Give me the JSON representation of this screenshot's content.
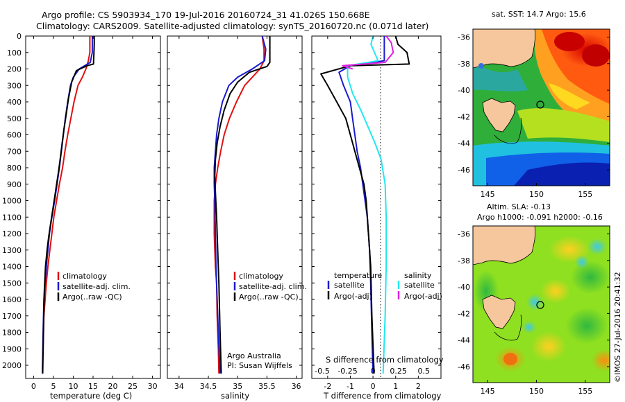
{
  "title": {
    "line1": "Argo profile: CS 5903934_170 19-Jul-2016 20160724_31 41.026S 150.668E",
    "line2": "Climatology: CARS2009. Satellite-adjusted climatology: synTS_20160720.nc (0.071d later)"
  },
  "colors": {
    "climatology": "#e01010",
    "satellite": "#1a1ad0",
    "argo": "#000000",
    "sat_salinity": "#20e8f0",
    "argo_adj_salinity": "#e020e0"
  },
  "depth_axis": {
    "ticks": [
      "0",
      "100",
      "200",
      "300",
      "400",
      "500",
      "600",
      "700",
      "800",
      "900",
      "1000",
      "1100",
      "1200",
      "1300",
      "1400",
      "1500",
      "1600",
      "1700",
      "1800",
      "1900",
      "2000"
    ]
  },
  "chart_data": [
    {
      "type": "line",
      "panel": "temperature",
      "xlabel": "temperature (deg C)",
      "xlim": [
        -2,
        32
      ],
      "xticks": [
        "0",
        "5",
        "10",
        "15",
        "20",
        "25",
        "30"
      ],
      "ylim": [
        2080,
        0
      ],
      "legend": {
        "position": "bottom-right",
        "entries": [
          "climatology",
          "satellite-adj. clim.",
          "Argo(..raw -QC)"
        ]
      },
      "series": [
        {
          "name": "climatology",
          "color": "#e01010",
          "x": [
            14.2,
            14.2,
            13.8,
            13.2,
            12.3,
            11.2,
            10.2,
            9.4,
            8.6,
            7.9,
            7.3,
            6.5,
            5.8,
            5.1,
            4.6,
            4.1,
            3.6,
            3.2,
            2.9,
            2.6,
            2.4,
            2.2
          ],
          "depth": [
            0,
            100,
            150,
            200,
            250,
            300,
            400,
            500,
            600,
            700,
            800,
            900,
            1000,
            1100,
            1200,
            1300,
            1400,
            1500,
            1600,
            1700,
            1900,
            2050
          ]
        },
        {
          "name": "satellite-adj. clim.",
          "color": "#1a1ad0",
          "x": [
            14.8,
            14.8,
            14.3,
            11.5,
            10.0,
            9.3,
            8.6,
            8.0,
            7.5,
            7.0,
            6.5,
            5.9,
            5.3,
            4.6,
            4.0,
            3.6,
            3.2,
            2.9,
            2.6,
            2.4,
            2.2
          ],
          "depth": [
            0,
            100,
            160,
            200,
            250,
            300,
            400,
            500,
            600,
            700,
            800,
            900,
            1000,
            1100,
            1200,
            1300,
            1400,
            1500,
            1600,
            1800,
            2050
          ]
        },
        {
          "name": "Argo(..raw -QC)",
          "color": "#000000",
          "x": [
            15.3,
            15.3,
            15.2,
            15.1,
            13.5,
            10.8,
            9.6,
            8.8,
            8.2,
            7.7,
            7.2,
            6.8,
            6.3,
            5.8,
            5.3,
            4.8,
            4.3,
            3.8,
            3.4,
            3.0,
            2.7,
            2.5,
            2.3
          ],
          "depth": [
            0,
            50,
            120,
            170,
            180,
            210,
            280,
            380,
            480,
            560,
            650,
            730,
            820,
            900,
            980,
            1060,
            1140,
            1220,
            1300,
            1400,
            1550,
            1750,
            2050
          ]
        }
      ]
    },
    {
      "type": "line",
      "panel": "salinity",
      "xlabel": "salinity",
      "xlim": [
        33.8,
        36.1
      ],
      "xticks": [
        "34",
        "34.5",
        "35",
        "35.5",
        "36"
      ],
      "ylim": [
        2080,
        0
      ],
      "legend": {
        "position": "bottom-right",
        "entries": [
          "climatology",
          "satellite-adj. clim.",
          "Argo(..raw -QC)"
        ]
      },
      "annotation": [
        "Argo Australia",
        "PI: Susan Wijffels"
      ],
      "series": [
        {
          "name": "climatology",
          "color": "#e01010",
          "x": [
            35.42,
            35.45,
            35.45,
            35.38,
            35.25,
            35.12,
            34.98,
            34.86,
            34.77,
            34.71,
            34.66,
            34.62,
            34.6,
            34.6,
            34.6,
            34.61,
            34.62,
            34.64,
            34.65,
            34.67,
            34.68
          ],
          "depth": [
            0,
            80,
            150,
            200,
            250,
            300,
            400,
            500,
            600,
            700,
            800,
            900,
            1000,
            1100,
            1200,
            1300,
            1400,
            1500,
            1700,
            1900,
            2050
          ]
        },
        {
          "name": "satellite-adj. clim.",
          "color": "#1a1ad0",
          "x": [
            35.42,
            35.48,
            35.46,
            35.25,
            35.0,
            34.85,
            34.74,
            34.68,
            34.64,
            34.62,
            34.6,
            34.6,
            34.61,
            34.62,
            34.63,
            34.65,
            34.67,
            34.7
          ],
          "depth": [
            0,
            80,
            150,
            200,
            250,
            300,
            400,
            500,
            600,
            700,
            800,
            900,
            1000,
            1200,
            1400,
            1600,
            1800,
            2050
          ]
        },
        {
          "name": "Argo(..raw -QC)",
          "color": "#000000",
          "x": [
            35.55,
            35.55,
            35.5,
            35.2,
            35.0,
            34.87,
            34.77,
            34.7,
            34.65,
            34.62,
            34.61,
            34.62,
            34.64,
            34.66,
            34.68,
            34.7,
            34.72
          ],
          "depth": [
            0,
            160,
            185,
            220,
            280,
            350,
            450,
            550,
            650,
            750,
            850,
            950,
            1100,
            1300,
            1500,
            1800,
            2050
          ]
        }
      ]
    },
    {
      "type": "line",
      "panel": "difference",
      "xlabel": "T difference from climatology",
      "xlim": [
        -2.7,
        3.0
      ],
      "xticks": [
        "-2",
        "-1",
        "0",
        "1",
        "2"
      ],
      "top_axis_label": "S difference from climatology",
      "s_ticks": [
        "-0.5",
        "-0.25",
        "0",
        "0.25",
        "0.5"
      ],
      "ylim": [
        2080,
        0
      ],
      "legend": {
        "position": "bottom",
        "entries": [
          "temperature",
          "satellite",
          "Argo(-adj)",
          "salinity",
          "satellite",
          "Argo(-adj)"
        ]
      },
      "series": [
        {
          "name": "temperature satellite",
          "color": "#1a1ad0",
          "x": [
            0.5,
            0.5,
            0.5,
            -1.0,
            -1.5,
            -1.3,
            -1.0,
            -0.9,
            -0.8,
            -0.7,
            -0.55,
            -0.45,
            -0.35,
            -0.25,
            -0.15,
            -0.1,
            -0.05,
            0.0
          ],
          "depth": [
            0,
            100,
            150,
            180,
            220,
            300,
            400,
            500,
            600,
            700,
            800,
            900,
            1000,
            1100,
            1300,
            1500,
            1800,
            2050
          ]
        },
        {
          "name": "temperature Argo(-adj)",
          "color": "#000000",
          "x": [
            1.0,
            1.1,
            1.5,
            1.6,
            -1.0,
            -2.3,
            -2.0,
            -1.6,
            -1.2,
            -1.0,
            -0.8,
            -0.6,
            -0.4,
            -0.3,
            -0.2,
            -0.1,
            -0.05,
            0.05
          ],
          "depth": [
            0,
            50,
            100,
            170,
            180,
            230,
            300,
            400,
            500,
            600,
            700,
            800,
            900,
            1000,
            1200,
            1400,
            1700,
            2050
          ]
        },
        {
          "name": "salinity satellite",
          "color": "#20e8f0",
          "x": [
            0.0,
            -0.02,
            0.05,
            -0.25,
            -0.25,
            -0.2,
            -0.12,
            -0.05,
            0.02,
            0.08,
            0.12,
            0.13,
            0.13,
            0.12,
            0.1
          ],
          "depth": [
            0,
            50,
            150,
            180,
            250,
            350,
            450,
            550,
            650,
            750,
            900,
            1100,
            1400,
            1700,
            2050
          ]
        },
        {
          "name": "salinity Argo(-adj)",
          "color": "#e020e0",
          "x": [
            0.13,
            0.18,
            0.2,
            0.12,
            -0.3,
            -0.2
          ],
          "depth": [
            0,
            40,
            100,
            160,
            180,
            200
          ]
        }
      ]
    },
    {
      "type": "heatmap",
      "panel": "sst-map",
      "title": "sat. SST: 14.7 Argo: 15.6",
      "xticks": [
        "145",
        "150",
        "155"
      ],
      "yticks": [
        "-36",
        "-38",
        "-40",
        "-42",
        "-44",
        "-46"
      ],
      "xlim": [
        143.5,
        157.5
      ],
      "ylim": [
        -47.2,
        -35.4
      ],
      "marker": {
        "lon": 150.668,
        "lat": -41.026
      }
    },
    {
      "type": "heatmap",
      "panel": "sla-map",
      "title": "Altim. SLA: -0.13",
      "subtitle": "Argo h1000: -0.091 h2000: -0.16",
      "xticks": [
        "145",
        "150",
        "155"
      ],
      "yticks": [
        "-36",
        "-38",
        "-40",
        "-42",
        "-44",
        "-46"
      ],
      "xlim": [
        143.5,
        157.5
      ],
      "ylim": [
        -47.2,
        -35.4
      ],
      "marker": {
        "lon": 150.668,
        "lat": -41.026
      }
    }
  ],
  "credit": "©IMOS 27-Jul-2016 20:41:32"
}
